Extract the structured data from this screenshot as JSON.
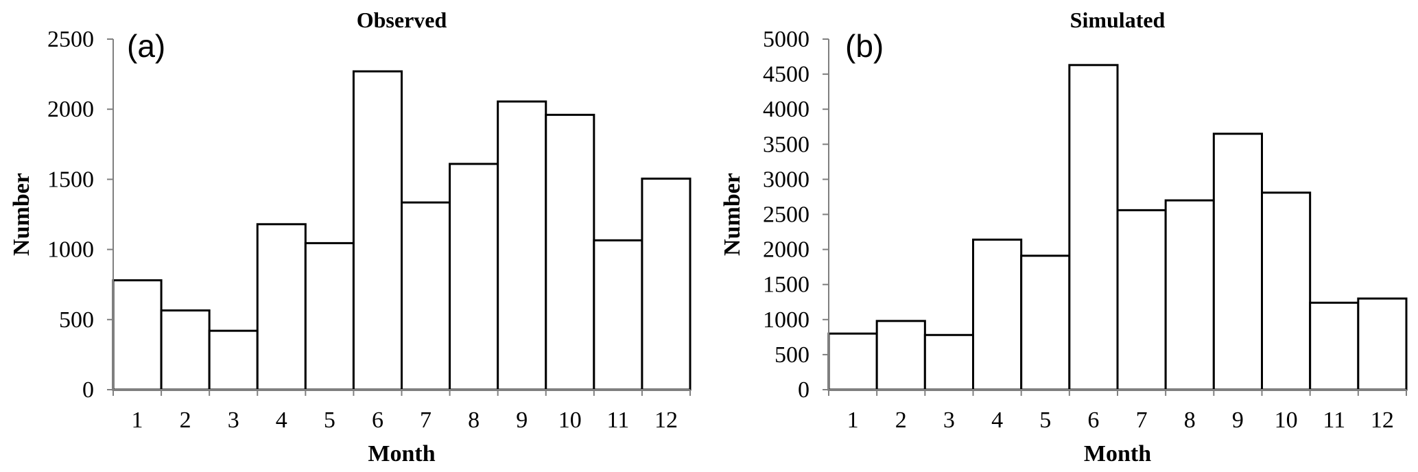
{
  "chart_data": [
    {
      "type": "bar",
      "panel_label": "(a)",
      "title": "Observed",
      "xlabel": "Month",
      "ylabel": "Number",
      "categories": [
        "1",
        "2",
        "3",
        "4",
        "5",
        "6",
        "7",
        "8",
        "9",
        "10",
        "11",
        "12"
      ],
      "values": [
        780,
        565,
        420,
        1180,
        1045,
        2270,
        1335,
        1610,
        2055,
        1960,
        1065,
        1505
      ],
      "ylim": [
        0,
        2500
      ],
      "yticks": [
        0,
        500,
        1000,
        1500,
        2000,
        2500
      ],
      "ytick_labels": [
        "0",
        "500",
        "1000",
        "1500",
        "2000",
        "2500"
      ],
      "grid": false,
      "bar_fill": "#ffffff",
      "bar_edge": "#000000"
    },
    {
      "type": "bar",
      "panel_label": "(b)",
      "title": "Simulated",
      "xlabel": "Month",
      "ylabel": "Number",
      "categories": [
        "1",
        "2",
        "3",
        "4",
        "5",
        "6",
        "7",
        "8",
        "9",
        "10",
        "11",
        "12"
      ],
      "values": [
        800,
        980,
        780,
        2140,
        1910,
        4630,
        2560,
        2700,
        3650,
        2810,
        1240,
        1300
      ],
      "ylim": [
        0,
        5000
      ],
      "yticks": [
        0,
        500,
        1000,
        1500,
        2000,
        2500,
        3000,
        3500,
        4000,
        4500,
        5000
      ],
      "ytick_labels": [
        "0",
        "500",
        "1000",
        "1500",
        "2000",
        "2500",
        "3000",
        "3500",
        "4000",
        "4500",
        "5000"
      ],
      "grid": false,
      "bar_fill": "#ffffff",
      "bar_edge": "#000000"
    }
  ]
}
